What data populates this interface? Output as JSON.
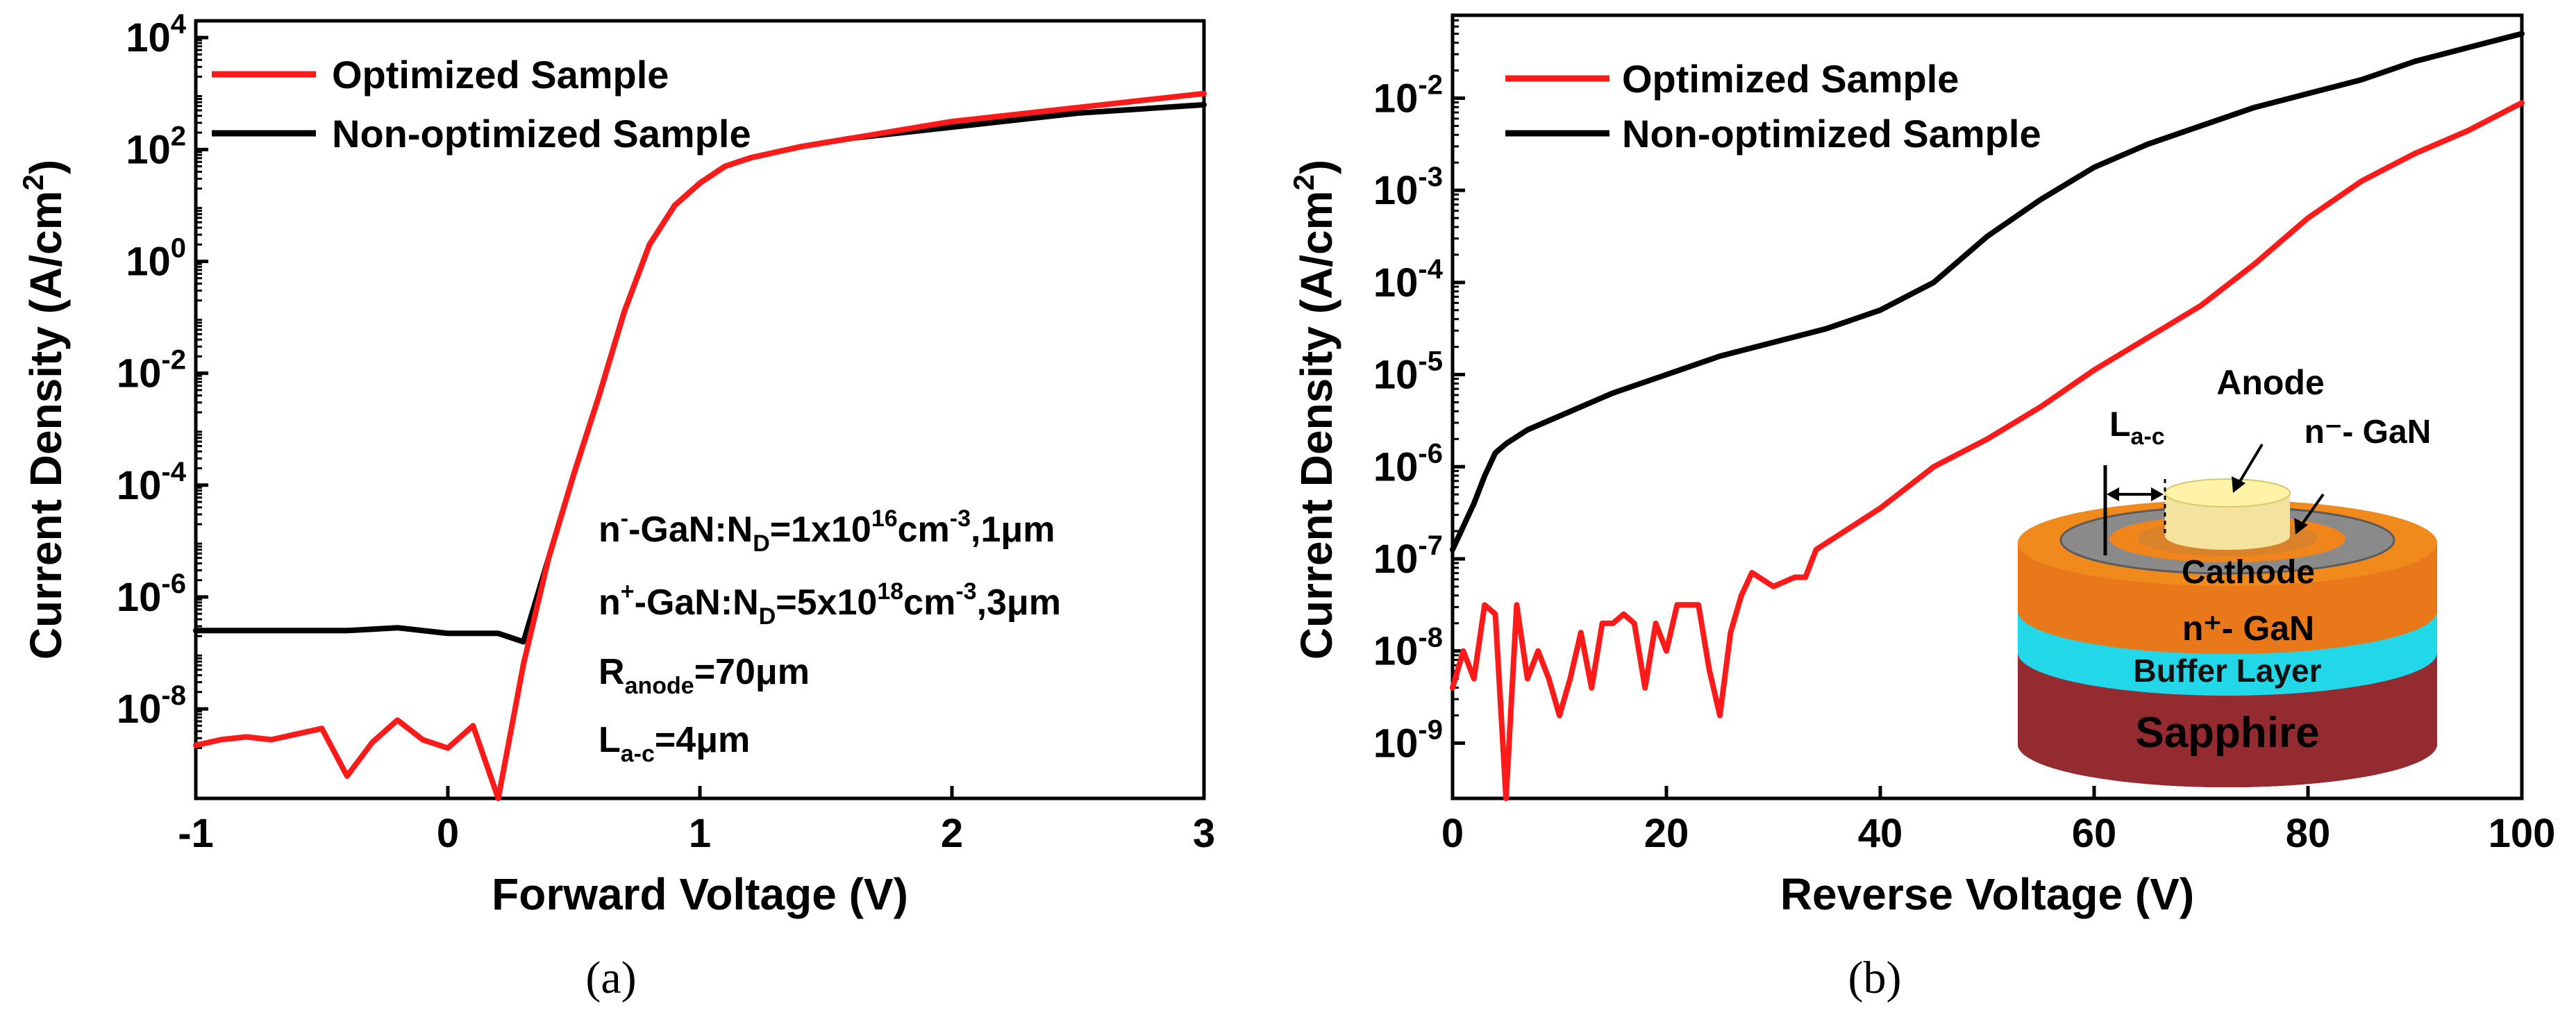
{
  "chart_data": [
    {
      "type": "line",
      "panel": "(a)",
      "xlabel": "Forward Voltage (V)",
      "ylabel": "Current Density (A/cm²)",
      "ylabel_main": "Current Density (A/cm",
      "ylabel_sup": "2",
      "ylabel_end": ")",
      "yscale": "log",
      "xlim": [
        -1,
        3
      ],
      "ylim_exp": [
        -9.6,
        4.3
      ],
      "x_ticks": [
        "-1",
        "0",
        "1",
        "2",
        "3"
      ],
      "y_tick_exponents": [
        "4",
        "2",
        "0",
        "-2",
        "-4",
        "-6",
        "-8"
      ],
      "legend": [
        "Optimized Sample",
        "Non-optimized Sample"
      ],
      "series": [
        {
          "name": "Optimized Sample",
          "color": "#ff1a1a",
          "x": [
            -1,
            -0.9,
            -0.8,
            -0.7,
            -0.6,
            -0.5,
            -0.4,
            -0.3,
            -0.2,
            -0.1,
            0,
            0.1,
            0.2,
            0.3,
            0.4,
            0.5,
            0.6,
            0.7,
            0.8,
            0.9,
            1.0,
            1.1,
            1.2,
            1.4,
            1.6,
            1.8,
            2.0,
            2.5,
            3.0
          ],
          "log10_y": [
            -8.65,
            -8.55,
            -8.5,
            -8.55,
            -8.45,
            -8.35,
            -9.2,
            -8.6,
            -8.2,
            -8.55,
            -8.7,
            -8.3,
            -9.7,
            -7.2,
            -5.3,
            -3.8,
            -2.4,
            -0.9,
            0.3,
            1.0,
            1.4,
            1.7,
            1.85,
            2.05,
            2.2,
            2.35,
            2.5,
            2.75,
            3.0
          ]
        },
        {
          "name": "Non-optimized Sample",
          "color": "#000000",
          "x": [
            -1,
            -0.8,
            -0.6,
            -0.4,
            -0.2,
            0,
            0.1,
            0.2,
            0.3,
            0.4,
            0.5,
            0.6,
            0.7,
            0.8,
            0.9,
            1.0,
            1.1,
            1.2,
            1.4,
            1.6,
            1.8,
            2.0,
            2.5,
            3.0
          ],
          "log10_y": [
            -6.6,
            -6.6,
            -6.6,
            -6.6,
            -6.55,
            -6.65,
            -6.65,
            -6.65,
            -6.8,
            -5.3,
            -3.8,
            -2.4,
            -0.9,
            0.3,
            1.0,
            1.4,
            1.7,
            1.85,
            2.05,
            2.2,
            2.3,
            2.4,
            2.65,
            2.8
          ]
        }
      ],
      "annotations": [
        {
          "main": "n",
          "sup": "-",
          "rest": "-GaN:N",
          "sub": "D",
          "rest2": "=1x10",
          "sup2": "16",
          "rest3": "cm",
          "sup3": "-3",
          "rest4": ",1μm"
        },
        {
          "main": "n",
          "sup": "+",
          "rest": "-GaN:N",
          "sub": "D",
          "rest2": "=5x10",
          "sup2": "18",
          "rest3": "cm",
          "sup3": "-3",
          "rest4": ",3μm"
        },
        {
          "main": "R",
          "sub": "anode",
          "rest": "=70μm"
        },
        {
          "main": "L",
          "sub": "a-c",
          "rest": "=4μm"
        }
      ]
    },
    {
      "type": "line",
      "panel": "(b)",
      "xlabel": "Reverse Voltage (V)",
      "ylabel": "Current Density (A/cm²)",
      "ylabel_main": "Current Density (A/cm",
      "ylabel_sup": "2",
      "ylabel_end": ")",
      "yscale": "log",
      "xlim": [
        0,
        100
      ],
      "ylim_exp": [
        -9.6,
        -1.1
      ],
      "x_ticks": [
        "0",
        "20",
        "40",
        "60",
        "80",
        "100"
      ],
      "y_tick_exponents": [
        "-2",
        "-3",
        "-4",
        "-5",
        "-6",
        "-7",
        "-8",
        "-9"
      ],
      "legend": [
        "Optimized Sample",
        "Non-optimized Sample"
      ],
      "series": [
        {
          "name": "Optimized Sample",
          "color": "#ff1a1a",
          "x": [
            0,
            1,
            2,
            3,
            4,
            5,
            6,
            7,
            8,
            9,
            10,
            11,
            12,
            13,
            14,
            15,
            16,
            17,
            18,
            19,
            20,
            21,
            22,
            23,
            24,
            25,
            26,
            27,
            28,
            30,
            32,
            33,
            34,
            36,
            38,
            40,
            45,
            50,
            55,
            60,
            65,
            70,
            75,
            80,
            85,
            90,
            95,
            100
          ],
          "log10_y": [
            -8.4,
            -8.0,
            -8.3,
            -7.5,
            -7.6,
            -9.6,
            -7.5,
            -8.3,
            -8.0,
            -8.3,
            -8.7,
            -8.3,
            -7.8,
            -8.4,
            -7.7,
            -7.7,
            -7.6,
            -7.7,
            -8.4,
            -7.7,
            -8.0,
            -7.5,
            -7.5,
            -7.5,
            -8.2,
            -8.7,
            -7.8,
            -7.4,
            -7.15,
            -7.3,
            -7.2,
            -7.2,
            -6.9,
            -6.75,
            -6.6,
            -6.45,
            -6.0,
            -5.7,
            -5.35,
            -4.95,
            -4.6,
            -4.25,
            -3.8,
            -3.3,
            -2.9,
            -2.6,
            -2.35,
            -2.05
          ]
        },
        {
          "name": "Non-optimized Sample",
          "color": "#000000",
          "x": [
            0,
            1,
            2,
            3,
            4,
            5,
            7,
            10,
            15,
            20,
            25,
            30,
            35,
            40,
            45,
            50,
            55,
            60,
            65,
            70,
            75,
            80,
            85,
            90,
            95,
            100
          ],
          "log10_y": [
            -6.9,
            -6.65,
            -6.4,
            -6.1,
            -5.85,
            -5.75,
            -5.6,
            -5.45,
            -5.2,
            -5.0,
            -4.8,
            -4.65,
            -4.5,
            -4.3,
            -4.0,
            -3.5,
            -3.1,
            -2.75,
            -2.5,
            -2.3,
            -2.1,
            -1.95,
            -1.8,
            -1.6,
            -1.45,
            -1.3
          ]
        }
      ],
      "inset": {
        "anode": "Anode",
        "n_minus_gan": "n⁻- GaN",
        "l_ac": "L",
        "l_ac_sub": "a-c",
        "cathode": "Cathode",
        "n_plus_gan": "n⁺- GaN",
        "buffer": "Buffer Layer",
        "sapphire": "Sapphire"
      }
    }
  ],
  "captions": {
    "a": "(a)",
    "b": "(b)"
  },
  "axis_base": "10"
}
